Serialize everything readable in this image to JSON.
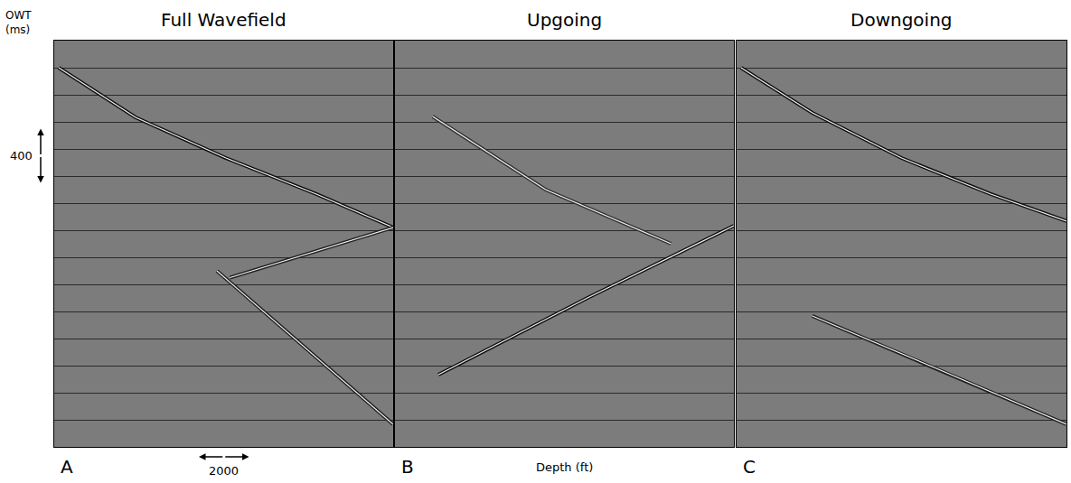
{
  "chart_data": [
    {
      "type": "line",
      "title": "Full Wavefield",
      "label": "A",
      "y_label": "OWT (ms)",
      "xlim": [
        0,
        13500
      ],
      "ylim": [
        0,
        3000
      ],
      "yticks": [
        200,
        400,
        600,
        800,
        1000,
        1200,
        1400,
        1600,
        1800,
        2000,
        2200,
        2400,
        2600,
        2800
      ],
      "grid": true,
      "tick_labels": false,
      "annotations": [
        {
          "text": "400",
          "value": 400,
          "axis": "y"
        },
        {
          "text": "2000",
          "value": 2000,
          "axis": "x"
        }
      ],
      "series": [
        {
          "color": "#111111",
          "line_style": "solid",
          "x": [
            180,
            3240,
            6840,
            10440,
            13500
          ],
          "values": [
            200,
            567,
            867,
            1133,
            1380
          ]
        },
        {
          "color": "#222222",
          "line_style": "solid",
          "x": [
            7000,
            10300,
            13500
          ],
          "values": [
            1750,
            1560,
            1380
          ]
        },
        {
          "color": "#222222",
          "line_style": "solid",
          "x": [
            6480,
            10000,
            13500
          ],
          "values": [
            1700,
            2270,
            2833
          ]
        }
      ]
    },
    {
      "type": "line",
      "title": "Upgoing",
      "label": "B",
      "x_label": "Depth (ft)",
      "xlim": [
        0,
        13500
      ],
      "ylim": [
        0,
        3000
      ],
      "yticks": [
        200,
        400,
        600,
        800,
        1000,
        1200,
        1400,
        1600,
        1800,
        2000,
        2200,
        2400,
        2600,
        2800
      ],
      "grid": true,
      "tick_labels": false,
      "series": [
        {
          "color": "#111111",
          "line_style": "solid",
          "x": [
            1728,
            7668,
            13500
          ],
          "values": [
            2467,
            1900,
            1367
          ]
        },
        {
          "color": "#333333",
          "line_style": "solid",
          "x": [
            1500,
            6000,
            11000
          ],
          "values": [
            560,
            1100,
            1500
          ]
        }
      ]
    },
    {
      "type": "line",
      "title": "Downgoing",
      "label": "C",
      "xlim": [
        0,
        13500
      ],
      "ylim": [
        0,
        3000
      ],
      "yticks": [
        200,
        400,
        600,
        800,
        1000,
        1200,
        1400,
        1600,
        1800,
        2000,
        2200,
        2400,
        2600,
        2800
      ],
      "grid": true,
      "tick_labels": false,
      "series": [
        {
          "color": "#111111",
          "line_style": "solid",
          "x": [
            180,
            3100,
            6750,
            10400,
            13500
          ],
          "values": [
            200,
            533,
            867,
            1133,
            1333
          ]
        },
        {
          "color": "#222222",
          "line_style": "solid",
          "x": [
            3100,
            8300,
            13500
          ],
          "values": [
            2033,
            2430,
            2833
          ]
        }
      ]
    }
  ]
}
